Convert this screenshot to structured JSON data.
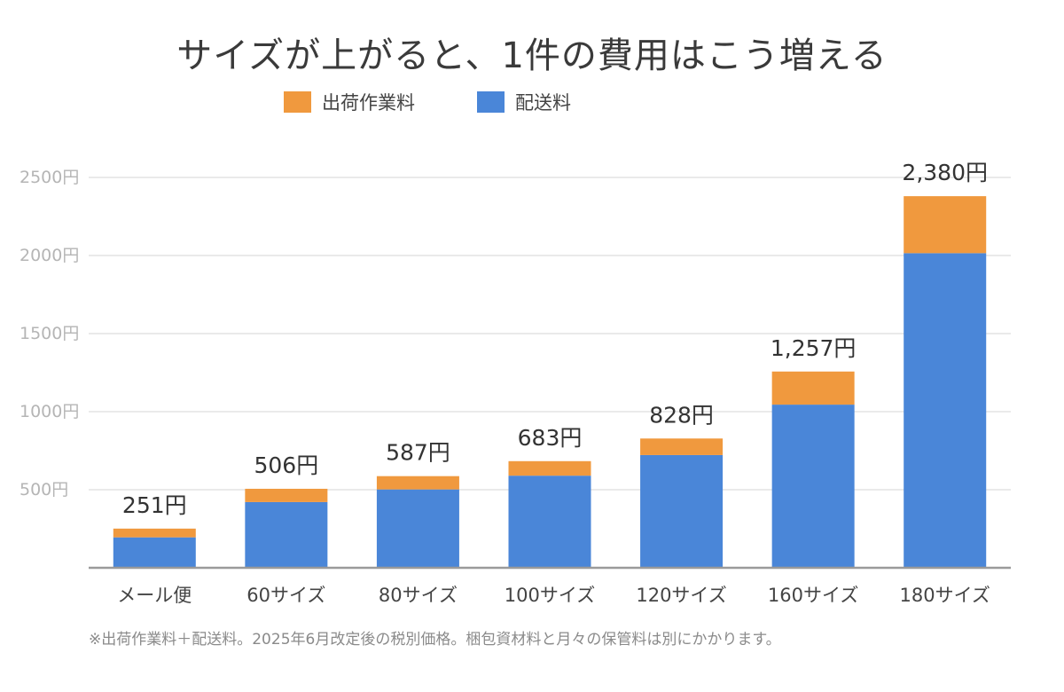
{
  "title": "サイズが上がると、1件の費用はこう増える",
  "note": "※出荷作業料＋配送料。2025年6月改定後の税別価格。梱包資材料と月々の保管料は別にかかります。",
  "colors": {
    "handling": "#F0993E",
    "shipping": "#4A86D8",
    "grid": "#e3e3e3",
    "axis": "#9a9a9a"
  },
  "chart_data": {
    "type": "bar",
    "stacked": true,
    "categories": [
      "メール便",
      "60サイズ",
      "80サイズ",
      "100サイズ",
      "120サイズ",
      "160サイズ",
      "180サイズ"
    ],
    "series": [
      {
        "name": "配送料",
        "color": "#4A86D8",
        "values": [
          195,
          421,
          502,
          590,
          722,
          1045,
          2015
        ]
      },
      {
        "name": "出荷作業料",
        "color": "#F0993E",
        "values": [
          56,
          85,
          85,
          93,
          106,
          212,
          365
        ]
      }
    ],
    "totals": [
      251,
      506,
      587,
      683,
      828,
      1257,
      2380
    ],
    "total_labels": [
      "251円",
      "506円",
      "587円",
      "683円",
      "828円",
      "1,257円",
      "2,380円"
    ],
    "y_ticks": [
      500,
      1000,
      1500,
      2000,
      2500
    ],
    "y_tick_labels": [
      "500円",
      "1000円",
      "1500円",
      "2000円",
      "2500円"
    ],
    "ylim": [
      0,
      2500
    ],
    "grid": true,
    "legend_position": "top",
    "legend": [
      {
        "label": "出荷作業料",
        "color": "#F0993E"
      },
      {
        "label": "配送料",
        "color": "#4A86D8"
      }
    ]
  }
}
